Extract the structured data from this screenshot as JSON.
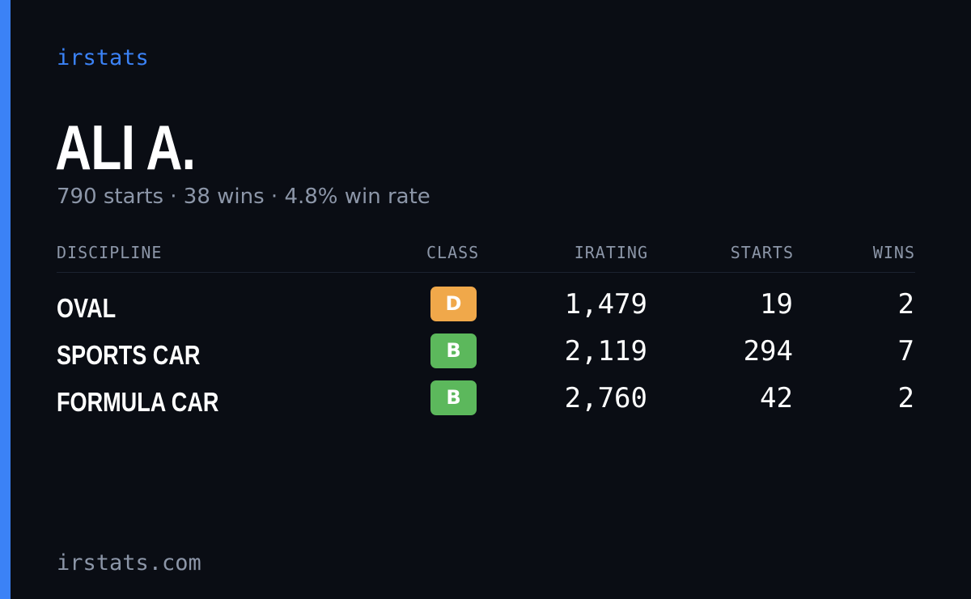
{
  "brand": "irstats",
  "driver": {
    "name": "ALI A.",
    "summary": "790 starts · 38 wins · 4.8% win rate"
  },
  "table": {
    "headers": {
      "discipline": "DISCIPLINE",
      "class": "CLASS",
      "irating": "IRATING",
      "starts": "STARTS",
      "wins": "WINS"
    },
    "rows": [
      {
        "discipline": "OVAL",
        "class": "D",
        "class_color": "#f0a84a",
        "irating": "1,479",
        "starts": "19",
        "wins": "2"
      },
      {
        "discipline": "SPORTS CAR",
        "class": "B",
        "class_color": "#5cb85c",
        "irating": "2,119",
        "starts": "294",
        "wins": "7"
      },
      {
        "discipline": "FORMULA CAR",
        "class": "B",
        "class_color": "#5cb85c",
        "irating": "2,760",
        "starts": "42",
        "wins": "2"
      }
    ]
  },
  "footer": "irstats.com",
  "colors": {
    "background": "#0a0d14",
    "accent": "#3b82f6",
    "muted_text": "#8c96a8",
    "class_d": "#f0a84a",
    "class_b": "#5cb85c"
  }
}
